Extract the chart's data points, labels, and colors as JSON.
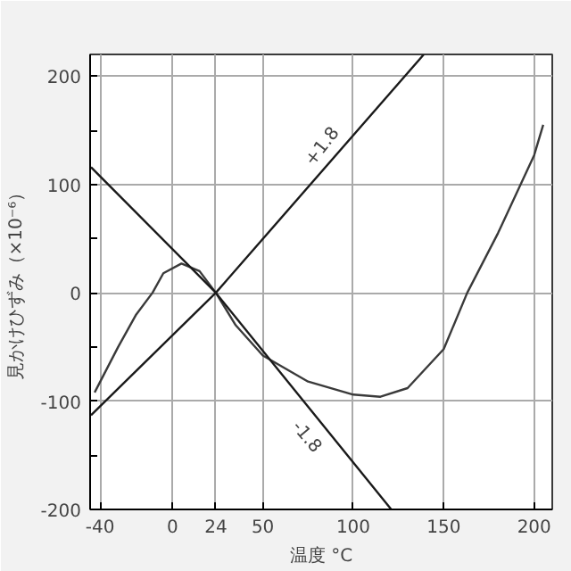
{
  "chart_data": {
    "type": "line",
    "xlabel": "温度 °C",
    "ylabel": "見かけひずみ（×10⁻⁶）",
    "xlim": [
      -45.5,
      210
    ],
    "ylim": [
      -200,
      220
    ],
    "xticks": [
      -40,
      0,
      24,
      50,
      100,
      150,
      200
    ],
    "yticks": [
      -200,
      {
        "value": -150,
        "label": null
      },
      -100,
      {
        "value": -50,
        "label": null
      },
      0,
      {
        "value": 50,
        "label": null
      },
      100,
      {
        "value": 150,
        "label": null
      },
      200
    ],
    "grid": true,
    "marker": "none",
    "line_style": "solid",
    "series": [
      {
        "color": "#3a3a3a",
        "x": [
          -43,
          -30,
          -20,
          -11,
          -5,
          5,
          15,
          24,
          35,
          50,
          75,
          100,
          115,
          130,
          150,
          163,
          180,
          200,
          205
        ],
        "values": [
          -92,
          -50,
          -20,
          0,
          18,
          27,
          20,
          0,
          -30,
          -58,
          -82,
          -94,
          -96,
          -88,
          -52,
          0,
          55,
          127,
          155
        ]
      },
      {
        "color": "#1a1a1a",
        "x": [
          -45,
          24,
          139
        ],
        "values": [
          -113,
          0,
          220
        ]
      },
      {
        "color": "#1a1a1a",
        "x": [
          -45,
          24,
          121
        ],
        "values": [
          116,
          0,
          -200
        ]
      }
    ],
    "annotations": [
      {
        "text": "+1.8",
        "x": 82,
        "y": 136
      },
      {
        "text": "-1.8",
        "x": 75,
        "y": -132
      }
    ]
  }
}
